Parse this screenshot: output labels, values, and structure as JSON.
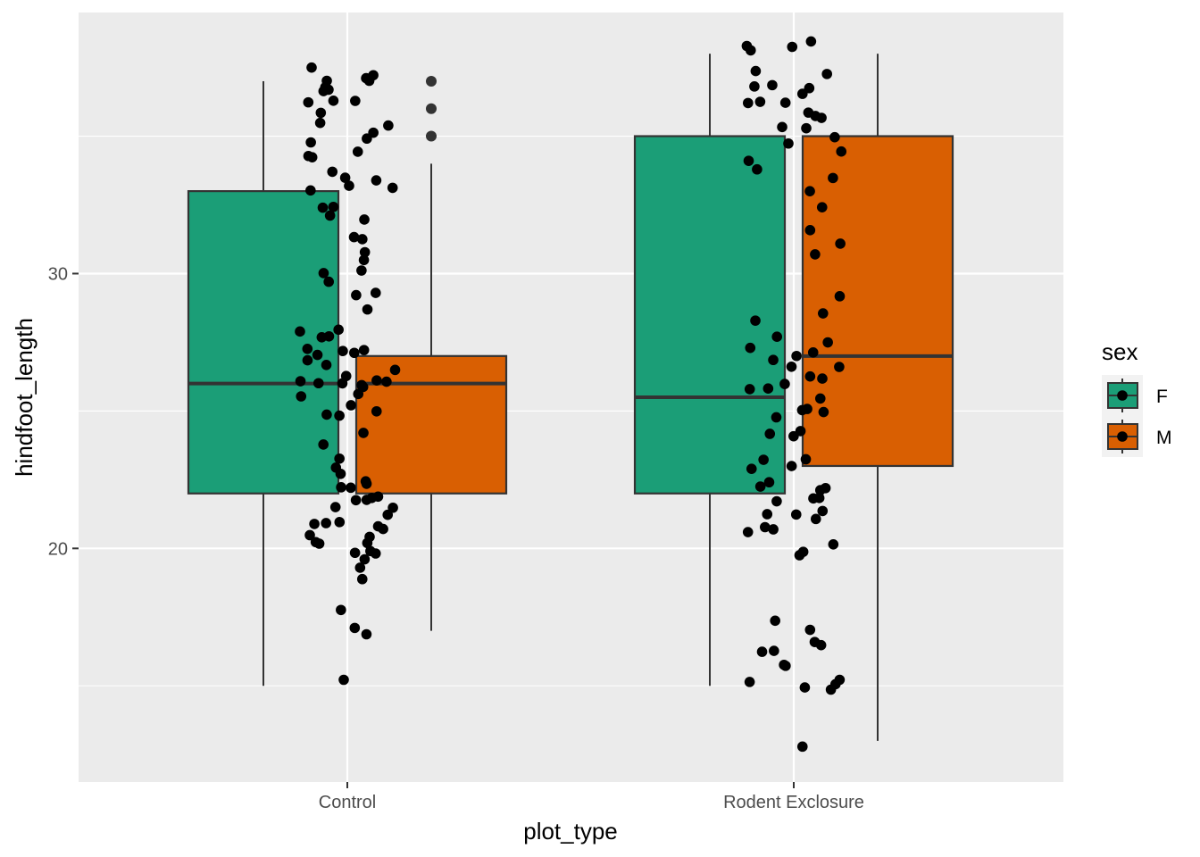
{
  "chart_data": {
    "type": "boxplot",
    "xlabel": "plot_type",
    "ylabel": "hindfoot_length",
    "categories": [
      "Control",
      "Rodent Exclosure"
    ],
    "y_ticks": [
      20,
      30
    ],
    "ylim": [
      11.5,
      39.5
    ],
    "grid": true,
    "legend": {
      "title": "sex",
      "placement": "right",
      "entries": [
        {
          "label": "F",
          "color": "#1B9E77"
        },
        {
          "label": "M",
          "color": "#D95F02"
        }
      ]
    },
    "series": [
      {
        "name": "F",
        "color": "#1B9E77",
        "boxes": [
          {
            "category": "Control",
            "lower_whisker": 15,
            "q1": 22,
            "median": 26,
            "q3": 33,
            "upper_whisker": 37,
            "outliers": []
          },
          {
            "category": "Rodent Exclosure",
            "lower_whisker": 15,
            "q1": 22,
            "median": 25.5,
            "q3": 35,
            "upper_whisker": 38,
            "outliers": []
          }
        ]
      },
      {
        "name": "M",
        "color": "#D95F02",
        "boxes": [
          {
            "category": "Control",
            "lower_whisker": 17,
            "q1": 22,
            "median": 26,
            "q3": 27,
            "upper_whisker": 34,
            "outliers": [
              35,
              36,
              37
            ]
          },
          {
            "category": "Rodent Exclosure",
            "lower_whisker": 13,
            "q1": 23,
            "median": 27,
            "q3": 35,
            "upper_whisker": 38,
            "outliers": []
          }
        ]
      }
    ],
    "jitter_points": {
      "color": "#000000",
      "groups": [
        {
          "category": "Control",
          "y": [
            19,
            19,
            19.5,
            20,
            20,
            20,
            20,
            20,
            20,
            20.5,
            20.5,
            20.5,
            21,
            21,
            21,
            21,
            21,
            21.5,
            21.5,
            22,
            22,
            22,
            22,
            22,
            22,
            22.5,
            22.5,
            23,
            23,
            23,
            24,
            24.5,
            25,
            25,
            25,
            25,
            25.5,
            25.5,
            26,
            26,
            26,
            26,
            26,
            26,
            26,
            26,
            26.5,
            26.5,
            27,
            27,
            27,
            27,
            27,
            27,
            27.5,
            27.5,
            28,
            28,
            28.5,
            29,
            29,
            30,
            30,
            30,
            30.5,
            31,
            31,
            31.5,
            32,
            32,
            32.5,
            32.5,
            33,
            33,
            33,
            33.5,
            33.5,
            34,
            34,
            34.5,
            34.5,
            35,
            35,
            35,
            35.5,
            35.5,
            36,
            36,
            36,
            36,
            36.5,
            36.5,
            37,
            37,
            37,
            37,
            37.5,
            37.5,
            15.3,
            16.8,
            17.2,
            17.8
          ]
        },
        {
          "category": "Rodent Exclosure",
          "y": [
            12.9,
            14.8,
            15,
            15,
            15.2,
            15.5,
            15.5,
            15.8,
            16,
            16,
            16.3,
            16.5,
            16.8,
            17.2,
            19.8,
            20,
            20,
            20.5,
            20.5,
            20.8,
            21,
            21,
            21,
            21.5,
            21.5,
            22,
            22,
            22,
            22,
            22.5,
            22.5,
            23,
            23,
            23,
            23.5,
            24,
            24,
            24.5,
            25,
            25,
            25,
            25,
            25.5,
            25.5,
            26,
            26,
            26,
            26,
            26.5,
            26.5,
            27,
            27,
            27,
            27.5,
            27.5,
            28,
            28,
            28.5,
            29,
            30.5,
            31,
            31.8,
            32.5,
            33,
            33.5,
            34,
            34,
            34.5,
            35,
            35,
            35,
            35.5,
            35.5,
            36,
            36,
            36,
            36,
            36.5,
            36.5,
            37,
            37,
            37,
            37.5,
            37.5,
            38,
            38,
            38.5,
            38.5
          ]
        }
      ]
    }
  }
}
